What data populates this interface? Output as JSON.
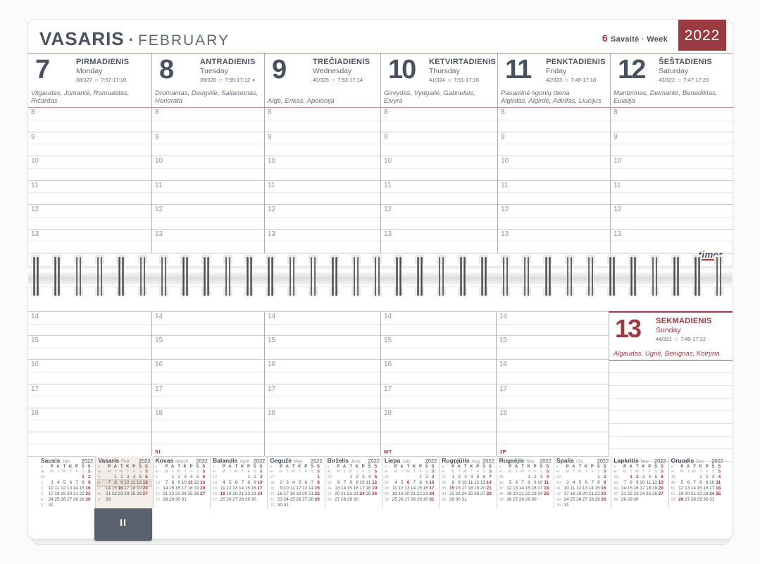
{
  "header": {
    "month_lt": "VASARIS",
    "separator": "·",
    "month_en": "FEBRUARY",
    "week_number": "6",
    "week_text": "Savaitė · Week",
    "year": "2022",
    "brand": "timer",
    "tab_label": "II"
  },
  "symbols": {
    "sun": "☼",
    "moon_first_quarter": "◐"
  },
  "hours_top": [
    "8",
    "9",
    "10",
    "11",
    "12",
    "13"
  ],
  "hours_bottom": [
    "14",
    "15",
    "16",
    "17",
    "18"
  ],
  "days": [
    {
      "num": "7",
      "name_lt": "PIRMADIENIS",
      "name_en": "Monday",
      "stats": "38/327",
      "sun_times": "7:57-17:10",
      "moon": "",
      "special": "",
      "names": "Vilgaudas, Jomantė, Romualdas, Ričardas"
    },
    {
      "num": "8",
      "name_lt": "ANTRADIENIS",
      "name_en": "Tuesday",
      "stats": "39/326",
      "sun_times": "7:55-17:12",
      "moon": "◐",
      "special": "",
      "names": "Dromantas, Daugvilė, Saliamonas, Honorata"
    },
    {
      "num": "9",
      "name_lt": "TREČIADIENIS",
      "name_en": "Wednesday",
      "stats": "40/325",
      "sun_times": "7:53-17:14",
      "moon": "",
      "special": "",
      "names": "Algė, Erikas, Apolonija"
    },
    {
      "num": "10",
      "name_lt": "KETVIRTADIENIS",
      "name_en": "Thursday",
      "stats": "41/324",
      "sun_times": "7:51-17:16",
      "moon": "",
      "special": "",
      "names": "Girvydas, Vydgailė, Gabrielius, Elvyra"
    },
    {
      "num": "11",
      "name_lt": "PENKTADIENIS",
      "name_en": "Friday",
      "stats": "42/323",
      "sun_times": "7:49-17:18",
      "moon": "",
      "special": "Pasaulinė ligonių diena",
      "names": "Algirdas, Algirdė, Adolfas, Liucijus"
    },
    {
      "num": "12",
      "name_lt": "ŠEŠTADIENIS",
      "name_en": "Saturday",
      "stats": "43/322",
      "sun_times": "7:47-17:20",
      "moon": "",
      "special": "",
      "names": "Mantminas, Deimantė, Benediktas, Eulalija"
    }
  ],
  "sunday": {
    "num": "13",
    "name_lt": "SEKMADIENIS",
    "name_en": "Sunday",
    "stats": "44/321",
    "sun_times": "7:45-17:22",
    "moon": "",
    "special": "",
    "names": "Algaudas, Ugnė, Benignas, Kotryna"
  },
  "column_marks": [
    {
      "column_index": 1,
      "text": "SI"
    },
    {
      "column_index": 3,
      "text": "MT"
    },
    {
      "column_index": 4,
      "text": "JP"
    }
  ],
  "mini_calendar_header": {
    "week_col_lt": "s",
    "week_col_en": "w",
    "dow_lt": [
      "P",
      "A",
      "T",
      "K",
      "P",
      "Š",
      "S"
    ],
    "dow_en": [
      "M",
      "T",
      "W",
      "T",
      "F",
      "S",
      "S"
    ]
  },
  "mini_calendars": [
    {
      "name_lt": "Sausis",
      "name_en": "Jan",
      "year": "2022",
      "current": false,
      "red": [
        1,
        2,
        9,
        16,
        23,
        30
      ],
      "weeks": [
        {
          "wn": "52",
          "days": [
            "",
            "",
            "",
            "",
            "",
            "1",
            "2"
          ]
        },
        {
          "wn": "1",
          "days": [
            "3",
            "4",
            "5",
            "6",
            "7",
            "8",
            "9"
          ]
        },
        {
          "wn": "2",
          "days": [
            "10",
            "11",
            "12",
            "13",
            "14",
            "15",
            "16"
          ]
        },
        {
          "wn": "3",
          "days": [
            "17",
            "18",
            "19",
            "20",
            "21",
            "22",
            "23"
          ]
        },
        {
          "wn": "4",
          "days": [
            "24",
            "25",
            "26",
            "27",
            "28",
            "29",
            "30"
          ]
        },
        {
          "wn": "5",
          "days": [
            "31",
            "",
            "",
            "",
            "",
            "",
            ""
          ]
        }
      ]
    },
    {
      "name_lt": "Vasaris",
      "name_en": "Feb",
      "year": "2022",
      "current": true,
      "red": [
        6,
        13,
        16,
        20,
        27
      ],
      "weeks": [
        {
          "wn": "5",
          "days": [
            "",
            "1",
            "2",
            "3",
            "4",
            "5",
            "6"
          ]
        },
        {
          "wn": "6",
          "days": [
            "7",
            "8",
            "9",
            "10",
            "11",
            "12",
            "13"
          ],
          "highlight": true
        },
        {
          "wn": "7",
          "days": [
            "14",
            "15",
            "16",
            "17",
            "18",
            "19",
            "20"
          ]
        },
        {
          "wn": "8",
          "days": [
            "21",
            "22",
            "23",
            "24",
            "25",
            "26",
            "27"
          ]
        },
        {
          "wn": "9",
          "days": [
            "28",
            "",
            "",
            "",
            "",
            "",
            ""
          ]
        }
      ]
    },
    {
      "name_lt": "Kovas",
      "name_en": "March",
      "year": "2022",
      "current": false,
      "red": [
        6,
        11,
        13,
        20,
        27
      ],
      "weeks": [
        {
          "wn": "9",
          "days": [
            "",
            "1",
            "2",
            "3",
            "4",
            "5",
            "6"
          ]
        },
        {
          "wn": "10",
          "days": [
            "7",
            "8",
            "9",
            "10",
            "11",
            "12",
            "13"
          ]
        },
        {
          "wn": "11",
          "days": [
            "14",
            "15",
            "16",
            "17",
            "18",
            "19",
            "20"
          ]
        },
        {
          "wn": "12",
          "days": [
            "21",
            "22",
            "23",
            "24",
            "25",
            "26",
            "27"
          ]
        },
        {
          "wn": "13",
          "days": [
            "28",
            "29",
            "30",
            "31",
            "",
            "",
            ""
          ]
        }
      ]
    },
    {
      "name_lt": "Balandis",
      "name_en": "April",
      "year": "2022",
      "current": false,
      "red": [
        3,
        10,
        17,
        18,
        24
      ],
      "weeks": [
        {
          "wn": "13",
          "days": [
            "",
            "",
            "",
            "",
            "1",
            "2",
            "3"
          ]
        },
        {
          "wn": "14",
          "days": [
            "4",
            "5",
            "6",
            "7",
            "8",
            "9",
            "10"
          ]
        },
        {
          "wn": "15",
          "days": [
            "11",
            "12",
            "13",
            "14",
            "15",
            "16",
            "17"
          ]
        },
        {
          "wn": "16",
          "days": [
            "18",
            "19",
            "20",
            "21",
            "22",
            "23",
            "24"
          ]
        },
        {
          "wn": "17",
          "days": [
            "25",
            "26",
            "27",
            "28",
            "29",
            "30",
            ""
          ]
        }
      ]
    },
    {
      "name_lt": "Gegužė",
      "name_en": "May",
      "year": "2022",
      "current": false,
      "red": [
        1,
        8,
        15,
        22,
        29
      ],
      "weeks": [
        {
          "wn": "17",
          "days": [
            "",
            "",
            "",
            "",
            "",
            "",
            "1"
          ]
        },
        {
          "wn": "18",
          "days": [
            "2",
            "3",
            "4",
            "5",
            "6",
            "7",
            "8"
          ]
        },
        {
          "wn": "19",
          "days": [
            "9",
            "10",
            "11",
            "12",
            "13",
            "14",
            "15"
          ]
        },
        {
          "wn": "20",
          "days": [
            "16",
            "17",
            "18",
            "19",
            "20",
            "21",
            "22"
          ]
        },
        {
          "wn": "21",
          "days": [
            "23",
            "24",
            "25",
            "26",
            "27",
            "28",
            "29"
          ]
        },
        {
          "wn": "22",
          "days": [
            "30",
            "31",
            "",
            "",
            "",
            "",
            ""
          ]
        }
      ]
    },
    {
      "name_lt": "Birželis",
      "name_en": "June",
      "year": "2022",
      "current": false,
      "red": [
        5,
        12,
        19,
        24,
        26
      ],
      "weeks": [
        {
          "wn": "22",
          "days": [
            "",
            "",
            "1",
            "2",
            "3",
            "4",
            "5"
          ]
        },
        {
          "wn": "23",
          "days": [
            "6",
            "7",
            "8",
            "9",
            "10",
            "11",
            "12"
          ]
        },
        {
          "wn": "24",
          "days": [
            "13",
            "14",
            "15",
            "16",
            "17",
            "18",
            "19"
          ]
        },
        {
          "wn": "25",
          "days": [
            "20",
            "21",
            "22",
            "23",
            "24",
            "25",
            "26"
          ]
        },
        {
          "wn": "26",
          "days": [
            "27",
            "28",
            "29",
            "30",
            "",
            "",
            ""
          ]
        }
      ]
    },
    {
      "name_lt": "Liepa",
      "name_en": "July",
      "year": "2022",
      "current": false,
      "red": [
        3,
        6,
        10,
        17,
        24,
        31
      ],
      "weeks": [
        {
          "wn": "26",
          "days": [
            "",
            "",
            "",
            "",
            "1",
            "2",
            "3"
          ]
        },
        {
          "wn": "27",
          "days": [
            "4",
            "5",
            "6",
            "7",
            "8",
            "9",
            "10"
          ]
        },
        {
          "wn": "28",
          "days": [
            "11",
            "12",
            "13",
            "14",
            "15",
            "16",
            "17"
          ]
        },
        {
          "wn": "29",
          "days": [
            "18",
            "19",
            "20",
            "21",
            "22",
            "23",
            "24"
          ]
        },
        {
          "wn": "30",
          "days": [
            "25",
            "26",
            "27",
            "28",
            "29",
            "30",
            "31"
          ]
        }
      ]
    },
    {
      "name_lt": "Rugpjūtis",
      "name_en": "Aug",
      "year": "2022",
      "current": false,
      "red": [
        7,
        14,
        15,
        21,
        28
      ],
      "weeks": [
        {
          "wn": "31",
          "days": [
            "1",
            "2",
            "3",
            "4",
            "5",
            "6",
            "7"
          ]
        },
        {
          "wn": "32",
          "days": [
            "8",
            "9",
            "10",
            "11",
            "12",
            "13",
            "14"
          ]
        },
        {
          "wn": "33",
          "days": [
            "15",
            "16",
            "17",
            "18",
            "19",
            "20",
            "21"
          ]
        },
        {
          "wn": "34",
          "days": [
            "22",
            "23",
            "24",
            "25",
            "26",
            "27",
            "28"
          ]
        },
        {
          "wn": "35",
          "days": [
            "29",
            "30",
            "31",
            "",
            "",
            "",
            ""
          ]
        }
      ]
    },
    {
      "name_lt": "Rugsėjis",
      "name_en": "Sep",
      "year": "2022",
      "current": false,
      "red": [
        4,
        11,
        18,
        25
      ],
      "weeks": [
        {
          "wn": "35",
          "days": [
            "",
            "",
            "",
            "1",
            "2",
            "3",
            "4"
          ]
        },
        {
          "wn": "36",
          "days": [
            "5",
            "6",
            "7",
            "8",
            "9",
            "10",
            "11"
          ]
        },
        {
          "wn": "37",
          "days": [
            "12",
            "13",
            "14",
            "15",
            "16",
            "17",
            "18"
          ]
        },
        {
          "wn": "38",
          "days": [
            "19",
            "20",
            "21",
            "22",
            "23",
            "24",
            "25"
          ]
        },
        {
          "wn": "39",
          "days": [
            "26",
            "27",
            "28",
            "29",
            "30",
            "",
            ""
          ]
        }
      ]
    },
    {
      "name_lt": "Spalis",
      "name_en": "Oct",
      "year": "2022",
      "current": false,
      "red": [
        2,
        9,
        16,
        23,
        30
      ],
      "weeks": [
        {
          "wn": "39",
          "days": [
            "",
            "",
            "",
            "",
            "",
            "1",
            "2"
          ]
        },
        {
          "wn": "40",
          "days": [
            "3",
            "4",
            "5",
            "6",
            "7",
            "8",
            "9"
          ]
        },
        {
          "wn": "41",
          "days": [
            "10",
            "11",
            "12",
            "13",
            "14",
            "15",
            "16"
          ]
        },
        {
          "wn": "42",
          "days": [
            "17",
            "18",
            "19",
            "20",
            "21",
            "22",
            "23"
          ]
        },
        {
          "wn": "43",
          "days": [
            "24",
            "25",
            "26",
            "27",
            "28",
            "29",
            "30"
          ]
        },
        {
          "wn": "44",
          "days": [
            "31",
            "",
            "",
            "",
            "",
            "",
            ""
          ]
        }
      ]
    },
    {
      "name_lt": "Lapkritis",
      "name_en": "Nov",
      "year": "2022",
      "current": false,
      "red": [
        1,
        2,
        6,
        13,
        20,
        27
      ],
      "weeks": [
        {
          "wn": "44",
          "days": [
            "",
            "1",
            "2",
            "3",
            "4",
            "5",
            "6"
          ]
        },
        {
          "wn": "45",
          "days": [
            "7",
            "8",
            "9",
            "10",
            "11",
            "12",
            "13"
          ]
        },
        {
          "wn": "46",
          "days": [
            "14",
            "15",
            "16",
            "17",
            "18",
            "19",
            "20"
          ]
        },
        {
          "wn": "47",
          "days": [
            "21",
            "22",
            "23",
            "24",
            "25",
            "26",
            "27"
          ]
        },
        {
          "wn": "48",
          "days": [
            "28",
            "29",
            "30",
            "",
            "",
            "",
            ""
          ]
        }
      ]
    },
    {
      "name_lt": "Gruodis",
      "name_en": "Dec",
      "year": "2022",
      "current": false,
      "red": [
        4,
        11,
        18,
        24,
        25,
        26
      ],
      "weeks": [
        {
          "wn": "48",
          "days": [
            "",
            "",
            "",
            "1",
            "2",
            "3",
            "4"
          ]
        },
        {
          "wn": "49",
          "days": [
            "5",
            "6",
            "7",
            "8",
            "9",
            "10",
            "11"
          ]
        },
        {
          "wn": "50",
          "days": [
            "12",
            "13",
            "14",
            "15",
            "16",
            "17",
            "18"
          ]
        },
        {
          "wn": "51",
          "days": [
            "19",
            "20",
            "21",
            "22",
            "23",
            "24",
            "25"
          ]
        },
        {
          "wn": "52",
          "days": [
            "26",
            "27",
            "28",
            "29",
            "30",
            "31",
            ""
          ]
        }
      ]
    }
  ]
}
